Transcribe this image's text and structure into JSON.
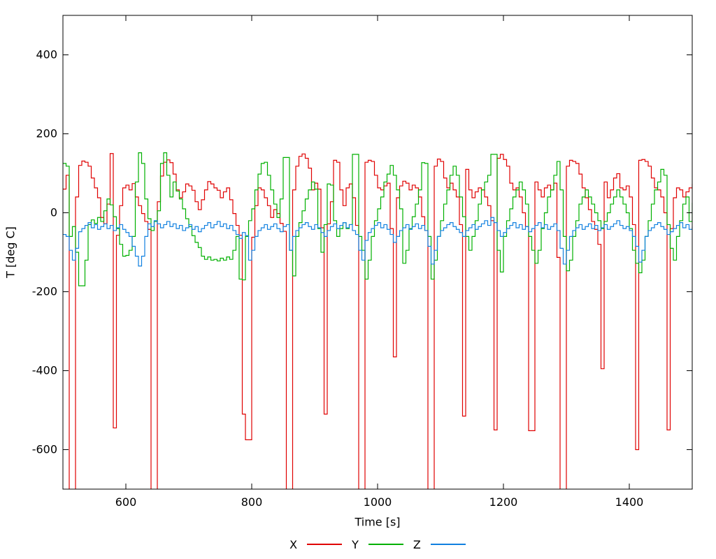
{
  "chart_data": {
    "type": "line",
    "line_style": "steps",
    "title": "",
    "xlabel": "Time [s]",
    "ylabel": "T [deg C]",
    "xlim": [
      500,
      1500
    ],
    "ylim": [
      -700,
      500
    ],
    "x_ticks": [
      600,
      800,
      1000,
      1200,
      1400
    ],
    "y_ticks": [
      -600,
      -400,
      -200,
      0,
      200,
      400
    ],
    "grid": false,
    "legend_position": "bottom-center",
    "axis_color": "#000000",
    "background_color": "#ffffff",
    "x_start": 500,
    "x_step": 5,
    "series": [
      {
        "name": "X",
        "color": "#e00000",
        "values": [
          60,
          95,
          -720,
          -720,
          40,
          120,
          131,
          128,
          118,
          88,
          63,
          38,
          -12,
          -28,
          22,
          150,
          -545,
          -57,
          18,
          63,
          70,
          58,
          74,
          40,
          18,
          -2,
          -22,
          -42,
          -720,
          -720,
          28,
          93,
          128,
          134,
          127,
          98,
          58,
          38,
          53,
          73,
          68,
          57,
          28,
          8,
          33,
          58,
          79,
          73,
          63,
          57,
          38,
          53,
          63,
          33,
          -2,
          -32,
          -57,
          -510,
          -575,
          -575,
          -62,
          18,
          63,
          58,
          38,
          18,
          -12,
          8,
          -2,
          -27,
          -47,
          -720,
          -720,
          58,
          118,
          143,
          149,
          138,
          113,
          58,
          75,
          60,
          -38,
          -510,
          -28,
          28,
          133,
          128,
          58,
          18,
          63,
          73,
          38,
          -32,
          -720,
          -720,
          128,
          133,
          130,
          95,
          63,
          58,
          68,
          75,
          -40,
          -365,
          38,
          68,
          80,
          75,
          58,
          70,
          63,
          40,
          -10,
          -45,
          -720,
          -720,
          118,
          136,
          130,
          88,
          63,
          75,
          58,
          40,
          -30,
          -515,
          110,
          58,
          38,
          53,
          63,
          58,
          40,
          18,
          -20,
          -550,
          138,
          148,
          135,
          118,
          75,
          58,
          63,
          40,
          0,
          -35,
          -552,
          -552,
          78,
          58,
          40,
          63,
          70,
          58,
          75,
          -113,
          -720,
          -720,
          118,
          133,
          130,
          125,
          98,
          63,
          38,
          8,
          -22,
          -42,
          -80,
          -395,
          78,
          38,
          58,
          88,
          99,
          63,
          58,
          68,
          40,
          -30,
          -600,
          133,
          135,
          130,
          118,
          88,
          63,
          58,
          40,
          0,
          -550,
          -40,
          38,
          63,
          58,
          40,
          53,
          63,
          73
        ]
      },
      {
        "name": "Y",
        "color": "#00b000",
        "values": [
          125,
          118,
          -60,
          -35,
          -100,
          -185,
          -185,
          -120,
          -30,
          -18,
          -27,
          -12,
          -22,
          5,
          35,
          20,
          -10,
          -40,
          -80,
          -110,
          -108,
          -95,
          -60,
          78,
          152,
          125,
          35,
          -15,
          -45,
          -22,
          5,
          125,
          152,
          95,
          40,
          78,
          55,
          35,
          10,
          -15,
          -35,
          -58,
          -75,
          -88,
          -110,
          -118,
          -112,
          -120,
          -118,
          -122,
          -115,
          -120,
          -112,
          -118,
          -95,
          -60,
          -168,
          -170,
          -60,
          -20,
          10,
          58,
          98,
          125,
          128,
          95,
          58,
          22,
          -12,
          35,
          140,
          140,
          -95,
          -160,
          -60,
          -25,
          5,
          35,
          58,
          78,
          60,
          -40,
          -100,
          -30,
          73,
          70,
          -20,
          -60,
          -40,
          -25,
          -40,
          -30,
          148,
          148,
          -60,
          -95,
          -168,
          -120,
          -60,
          -20,
          10,
          40,
          78,
          98,
          120,
          95,
          58,
          10,
          -128,
          -95,
          -40,
          -10,
          22,
          58,
          127,
          125,
          -60,
          -168,
          -120,
          -60,
          -20,
          22,
          58,
          95,
          118,
          95,
          40,
          -10,
          -60,
          -95,
          -60,
          -20,
          22,
          58,
          78,
          95,
          148,
          148,
          -95,
          -150,
          -60,
          -20,
          10,
          40,
          58,
          78,
          58,
          22,
          -60,
          -95,
          -128,
          -95,
          -40,
          0,
          40,
          58,
          95,
          130,
          58,
          -60,
          -147,
          -120,
          -60,
          -20,
          22,
          40,
          58,
          40,
          22,
          0,
          -20,
          -40,
          -22,
          0,
          22,
          40,
          58,
          40,
          22,
          0,
          -40,
          -95,
          -128,
          -152,
          -120,
          -60,
          -20,
          22,
          58,
          78,
          110,
          95,
          -30,
          -90,
          -120,
          -60,
          -20,
          22,
          40,
          -22,
          25
        ]
      },
      {
        "name": "Z",
        "color": "#1080e0",
        "values": [
          -55,
          -60,
          -95,
          -120,
          -90,
          -48,
          -40,
          -32,
          -25,
          -38,
          -30,
          -42,
          -35,
          -28,
          -40,
          -32,
          -45,
          -38,
          -30,
          -42,
          -50,
          -60,
          -85,
          -110,
          -135,
          -110,
          -60,
          -28,
          -35,
          -20,
          -28,
          -38,
          -30,
          -22,
          -35,
          -28,
          -40,
          -32,
          -45,
          -38,
          -30,
          -42,
          -35,
          -48,
          -40,
          -32,
          -25,
          -38,
          -30,
          -22,
          -35,
          -28,
          -40,
          -32,
          -45,
          -55,
          -65,
          -50,
          -58,
          -120,
          -95,
          -60,
          -45,
          -38,
          -30,
          -42,
          -35,
          -28,
          -40,
          -48,
          -35,
          -30,
          -95,
          -60,
          -45,
          -38,
          -30,
          -25,
          -35,
          -42,
          -30,
          -38,
          -50,
          -60,
          -45,
          -35,
          -28,
          -40,
          -32,
          -25,
          -38,
          -30,
          -45,
          -55,
          -95,
          -120,
          -70,
          -50,
          -40,
          -32,
          -25,
          -38,
          -30,
          -42,
          -55,
          -75,
          -60,
          -45,
          -38,
          -30,
          -42,
          -35,
          -28,
          -40,
          -32,
          -45,
          -85,
          -130,
          -95,
          -60,
          -45,
          -38,
          -30,
          -25,
          -35,
          -42,
          -50,
          -60,
          -45,
          -38,
          -30,
          -42,
          -35,
          -28,
          -20,
          -32,
          -12,
          -25,
          -45,
          -60,
          -50,
          -40,
          -32,
          -25,
          -38,
          -30,
          -42,
          -35,
          -48,
          -40,
          -32,
          -25,
          -38,
          -30,
          -42,
          -35,
          -28,
          -45,
          -90,
          -130,
          -95,
          -60,
          -45,
          -38,
          -30,
          -42,
          -35,
          -28,
          -40,
          -32,
          -45,
          -38,
          -30,
          -42,
          -35,
          -28,
          -20,
          -32,
          -40,
          -35,
          -45,
          -60,
          -85,
          -125,
          -95,
          -60,
          -45,
          -38,
          -30,
          -25,
          -35,
          -42,
          -55,
          -48,
          -40,
          -32,
          -25,
          -38,
          -30,
          -42,
          -35
        ]
      }
    ]
  }
}
